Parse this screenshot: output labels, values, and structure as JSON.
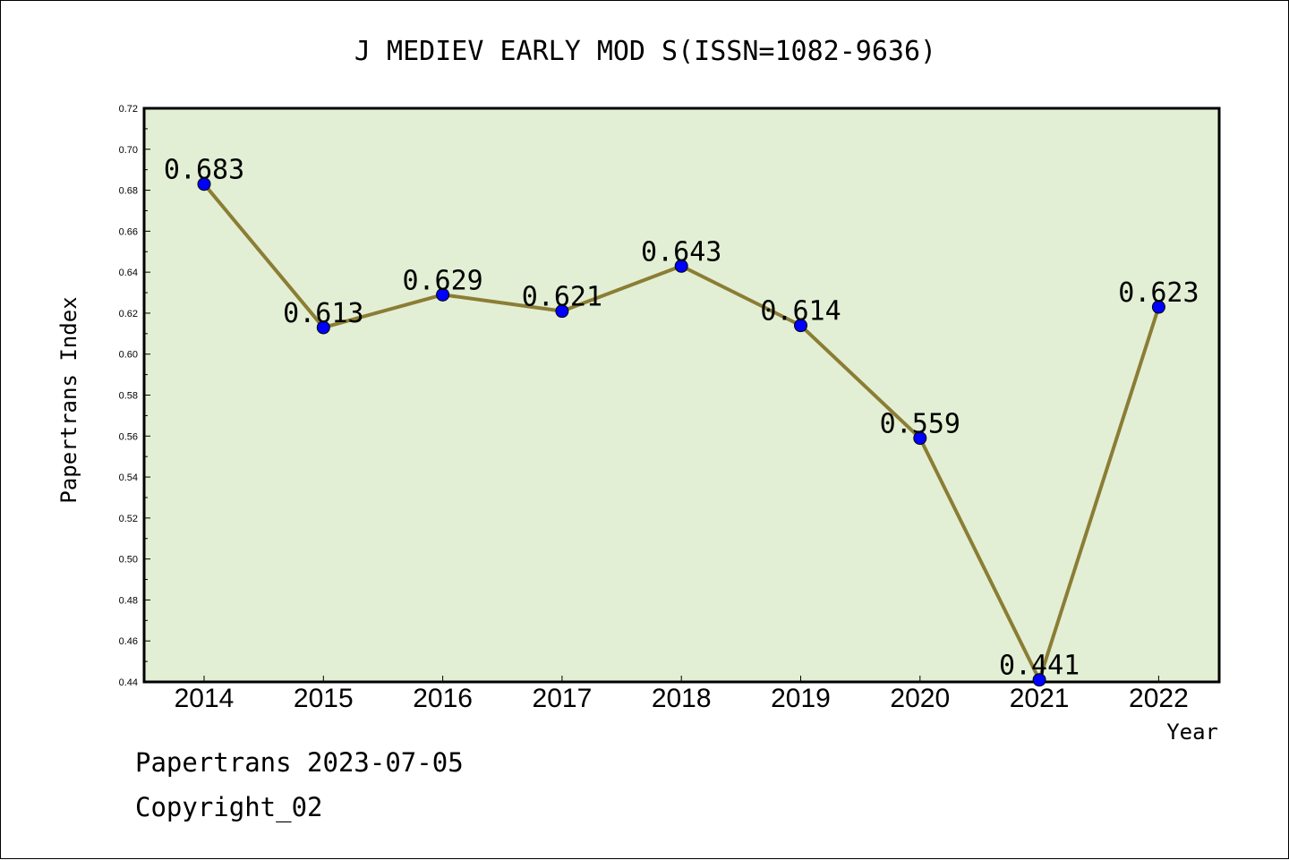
{
  "chart_data": {
    "type": "line",
    "title": "J MEDIEV EARLY MOD S(ISSN=1082-9636)",
    "xlabel": "Year",
    "ylabel": "Papertrans Index",
    "categories": [
      "2014",
      "2015",
      "2016",
      "2017",
      "2018",
      "2019",
      "2020",
      "2021",
      "2022"
    ],
    "values": [
      0.683,
      0.613,
      0.629,
      0.621,
      0.643,
      0.614,
      0.559,
      0.441,
      0.623
    ],
    "data_labels": [
      "0.683",
      "0.613",
      "0.629",
      "0.621",
      "0.643",
      "0.614",
      "0.559",
      "0.441",
      "0.623"
    ],
    "ylim": [
      0.44,
      0.72
    ],
    "yticks": [
      "0.44",
      "0.46",
      "0.48",
      "0.50",
      "0.52",
      "0.54",
      "0.56",
      "0.58",
      "0.60",
      "0.62",
      "0.64",
      "0.66",
      "0.68",
      "0.70",
      "0.72"
    ],
    "grid": false,
    "colors": {
      "plot_background": "#e2efd4",
      "line": "#8b7d35",
      "marker": "#0000ff"
    }
  },
  "footer": {
    "source": "Papertrans 2023-07-05",
    "copyright": "Copyright_02"
  }
}
